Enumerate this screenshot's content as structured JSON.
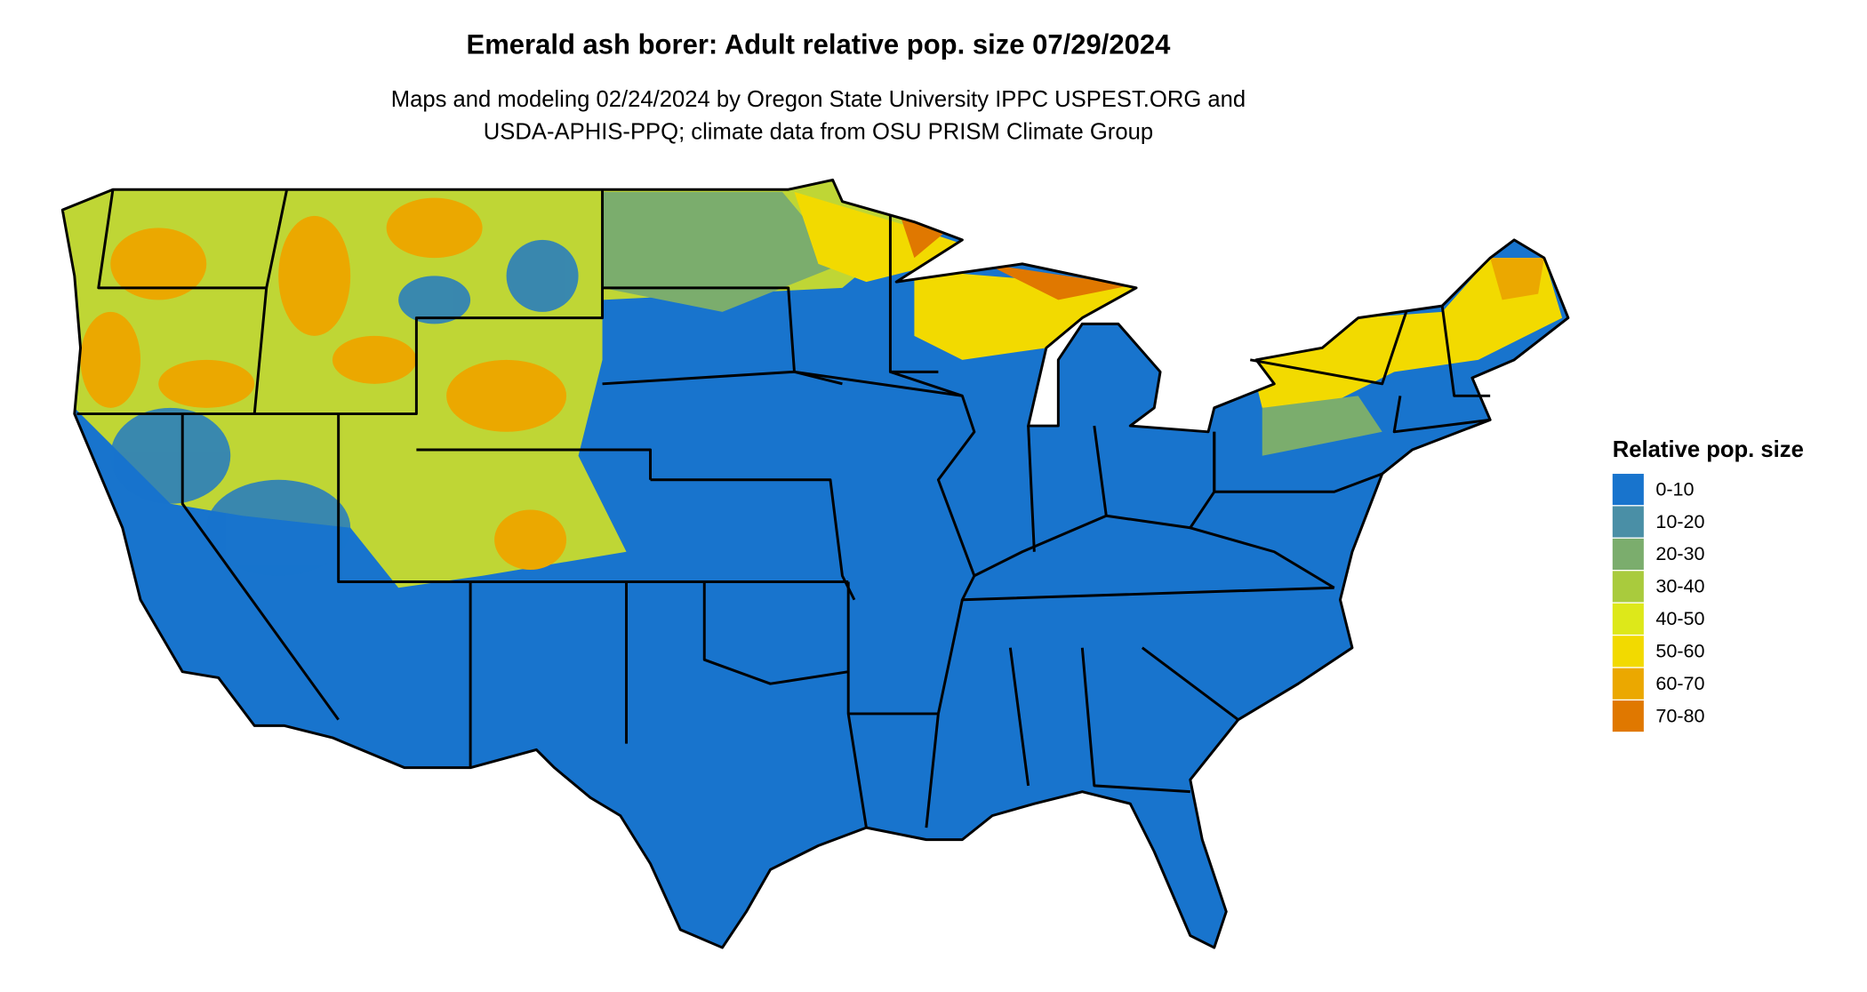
{
  "title": "Emerald ash borer: Adult relative pop. size 07/29/2024",
  "subtitle": [
    "Maps and modeling 02/24/2024 by Oregon State University IPPC USPEST.ORG and",
    "USDA-APHIS-PPQ; climate data from OSU PRISM Climate Group"
  ],
  "legend": {
    "title": "Relative pop. size",
    "items": [
      {
        "label": "0-10",
        "color": "#1874cd"
      },
      {
        "label": "10-20",
        "color": "#4a8fa6"
      },
      {
        "label": "20-30",
        "color": "#7bad6d"
      },
      {
        "label": "30-40",
        "color": "#a9cb3d"
      },
      {
        "label": "40-50",
        "color": "#dde81a"
      },
      {
        "label": "50-60",
        "color": "#f2da00"
      },
      {
        "label": "60-70",
        "color": "#eba800"
      },
      {
        "label": "70-80",
        "color": "#e07800"
      }
    ]
  }
}
